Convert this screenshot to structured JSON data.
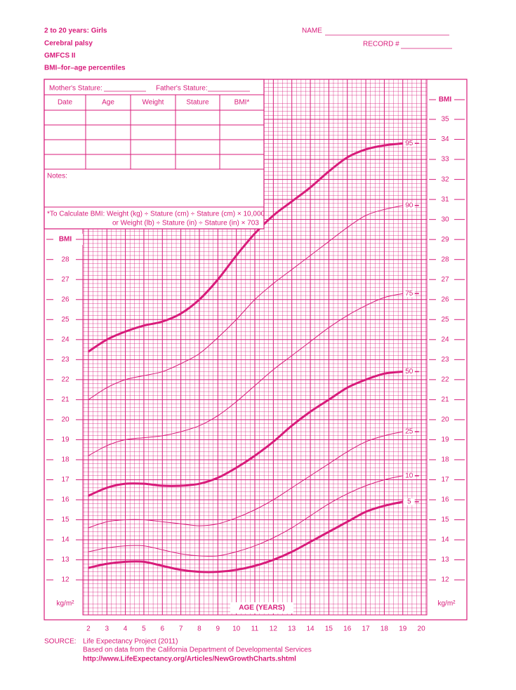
{
  "header": {
    "title_lines": [
      "2 to 20 years: Girls",
      "Cerebral palsy",
      "GMFCS II",
      "BMI–for–age percentiles"
    ],
    "name_label": "NAME",
    "record_label": "RECORD #"
  },
  "form": {
    "mothers_stature": "Mother's Stature:",
    "fathers_stature": "Father's Stature:",
    "columns": [
      "Date",
      "Age",
      "Weight",
      "Stature",
      "BMI*"
    ],
    "notes": "Notes:",
    "formula": [
      "*To Calculate BMI: Weight (kg) ÷ Stature (cm) ÷ Stature (cm) × 10,000",
      "or Weight (lb) ÷ Stature (in) ÷ Stature (in) × 703"
    ]
  },
  "chart_data": {
    "type": "line",
    "y_label": "BMI",
    "unit_label": "kg/m²",
    "x_label": "AGE (YEARS)",
    "grid": true,
    "color": "#d81b7a",
    "x": [
      2,
      3,
      4,
      5,
      6,
      7,
      8,
      9,
      10,
      11,
      12,
      13,
      14,
      15,
      16,
      17,
      18,
      19
    ],
    "series": [
      {
        "name": "95",
        "color": "#d81b7a",
        "width": 3,
        "values": [
          23.4,
          24.0,
          24.4,
          24.7,
          24.9,
          25.3,
          26.0,
          27.0,
          28.2,
          29.3,
          30.2,
          30.9,
          31.6,
          32.4,
          33.1,
          33.5,
          33.7,
          33.8
        ]
      },
      {
        "name": "90",
        "color": "#d81b7a",
        "width": 1,
        "values": [
          21.0,
          21.6,
          22.0,
          22.2,
          22.4,
          22.8,
          23.3,
          24.1,
          25.0,
          26.0,
          26.8,
          27.5,
          28.2,
          28.9,
          29.6,
          30.2,
          30.5,
          30.7
        ]
      },
      {
        "name": "75",
        "color": "#d81b7a",
        "width": 1,
        "values": [
          18.2,
          18.7,
          19.0,
          19.1,
          19.2,
          19.4,
          19.7,
          20.2,
          20.9,
          21.7,
          22.5,
          23.2,
          23.9,
          24.6,
          25.2,
          25.7,
          26.1,
          26.3
        ]
      },
      {
        "name": "50",
        "color": "#d81b7a",
        "width": 3,
        "values": [
          16.2,
          16.6,
          16.8,
          16.8,
          16.7,
          16.7,
          16.8,
          17.1,
          17.6,
          18.2,
          18.9,
          19.7,
          20.4,
          21.0,
          21.6,
          22.0,
          22.3,
          22.4
        ]
      },
      {
        "name": "25",
        "color": "#d81b7a",
        "width": 1,
        "values": [
          14.6,
          14.9,
          15.0,
          15.0,
          14.9,
          14.8,
          14.7,
          14.8,
          15.1,
          15.5,
          16.0,
          16.6,
          17.2,
          17.8,
          18.4,
          18.9,
          19.2,
          19.4
        ]
      },
      {
        "name": "10",
        "color": "#d81b7a",
        "width": 1,
        "values": [
          13.4,
          13.6,
          13.7,
          13.7,
          13.5,
          13.3,
          13.2,
          13.2,
          13.4,
          13.7,
          14.1,
          14.6,
          15.2,
          15.8,
          16.3,
          16.7,
          17.0,
          17.2
        ]
      },
      {
        "name": "5",
        "color": "#d81b7a",
        "width": 3,
        "values": [
          12.6,
          12.8,
          12.9,
          12.9,
          12.7,
          12.5,
          12.4,
          12.4,
          12.5,
          12.7,
          13.0,
          13.4,
          13.9,
          14.4,
          14.9,
          15.4,
          15.7,
          15.9
        ]
      }
    ],
    "xlim": [
      1.7,
      20.3
    ],
    "ylim": [
      10.25,
      37
    ],
    "xticks": [
      2,
      3,
      4,
      5,
      6,
      7,
      8,
      9,
      10,
      11,
      12,
      13,
      14,
      15,
      16,
      17,
      18,
      19,
      20
    ],
    "yticks": [
      12,
      13,
      14,
      15,
      16,
      17,
      18,
      19,
      20,
      21,
      22,
      23,
      24,
      25,
      26,
      27,
      28,
      29,
      30,
      31,
      32,
      33,
      34,
      35
    ],
    "left_yticks": [
      12,
      13,
      14,
      15,
      16,
      17,
      18,
      19,
      20,
      21,
      22,
      23,
      24,
      25,
      26,
      27,
      28
    ]
  },
  "source": {
    "label": "SOURCE:",
    "lines": [
      "Life Expectancy Project (2011)",
      "Based on data from the California Department of Developmental Services",
      "http://www.LifeExpectancy.org/Articles/NewGrowthCharts.shtml"
    ]
  }
}
